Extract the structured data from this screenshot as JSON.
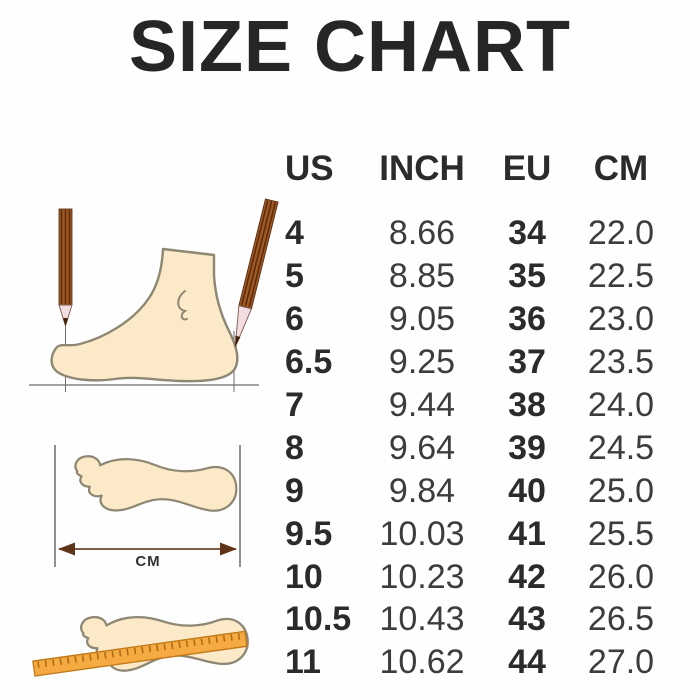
{
  "title": "SIZE CHART",
  "chart_data": {
    "type": "table",
    "title": "SIZE CHART",
    "columns": [
      "US",
      "INCH",
      "EU",
      "CM"
    ],
    "rows": [
      [
        "4",
        "8.66",
        "34",
        "22.0"
      ],
      [
        "5",
        "8.85",
        "35",
        "22.5"
      ],
      [
        "6",
        "9.05",
        "36",
        "23.0"
      ],
      [
        "6.5",
        "9.25",
        "37",
        "23.5"
      ],
      [
        "7",
        "9.44",
        "38",
        "24.0"
      ],
      [
        "8",
        "9.64",
        "39",
        "24.5"
      ],
      [
        "9",
        "9.84",
        "40",
        "25.0"
      ],
      [
        "9.5",
        "10.03",
        "41",
        "25.5"
      ],
      [
        "10",
        "10.23",
        "42",
        "26.0"
      ],
      [
        "10.5",
        "10.43",
        "43",
        "26.5"
      ],
      [
        "11",
        "10.62",
        "44",
        "27.0"
      ]
    ]
  },
  "illustrations": {
    "length_label": "CM",
    "items": [
      "foot-side-measure-with-pencils",
      "footprint-length-arrow",
      "footprint-with-ruler"
    ]
  },
  "colors": {
    "text": "#2b2b2b",
    "light_text": "#3c3c3c",
    "foot_fill": "#fbe9c8",
    "foot_outline": "#8d8774",
    "pencil_body": "#a05a24",
    "pencil_stripe": "#5d2c0c",
    "pencil_wood": "#f3dce2",
    "pencil_lead": "#46220d",
    "ruler_fill": "#f5ab42",
    "ruler_edge": "#c07a1a",
    "ruler_tick": "#b06c15",
    "arrow": "#5f3317",
    "guide_line": "#6b6b6b"
  }
}
